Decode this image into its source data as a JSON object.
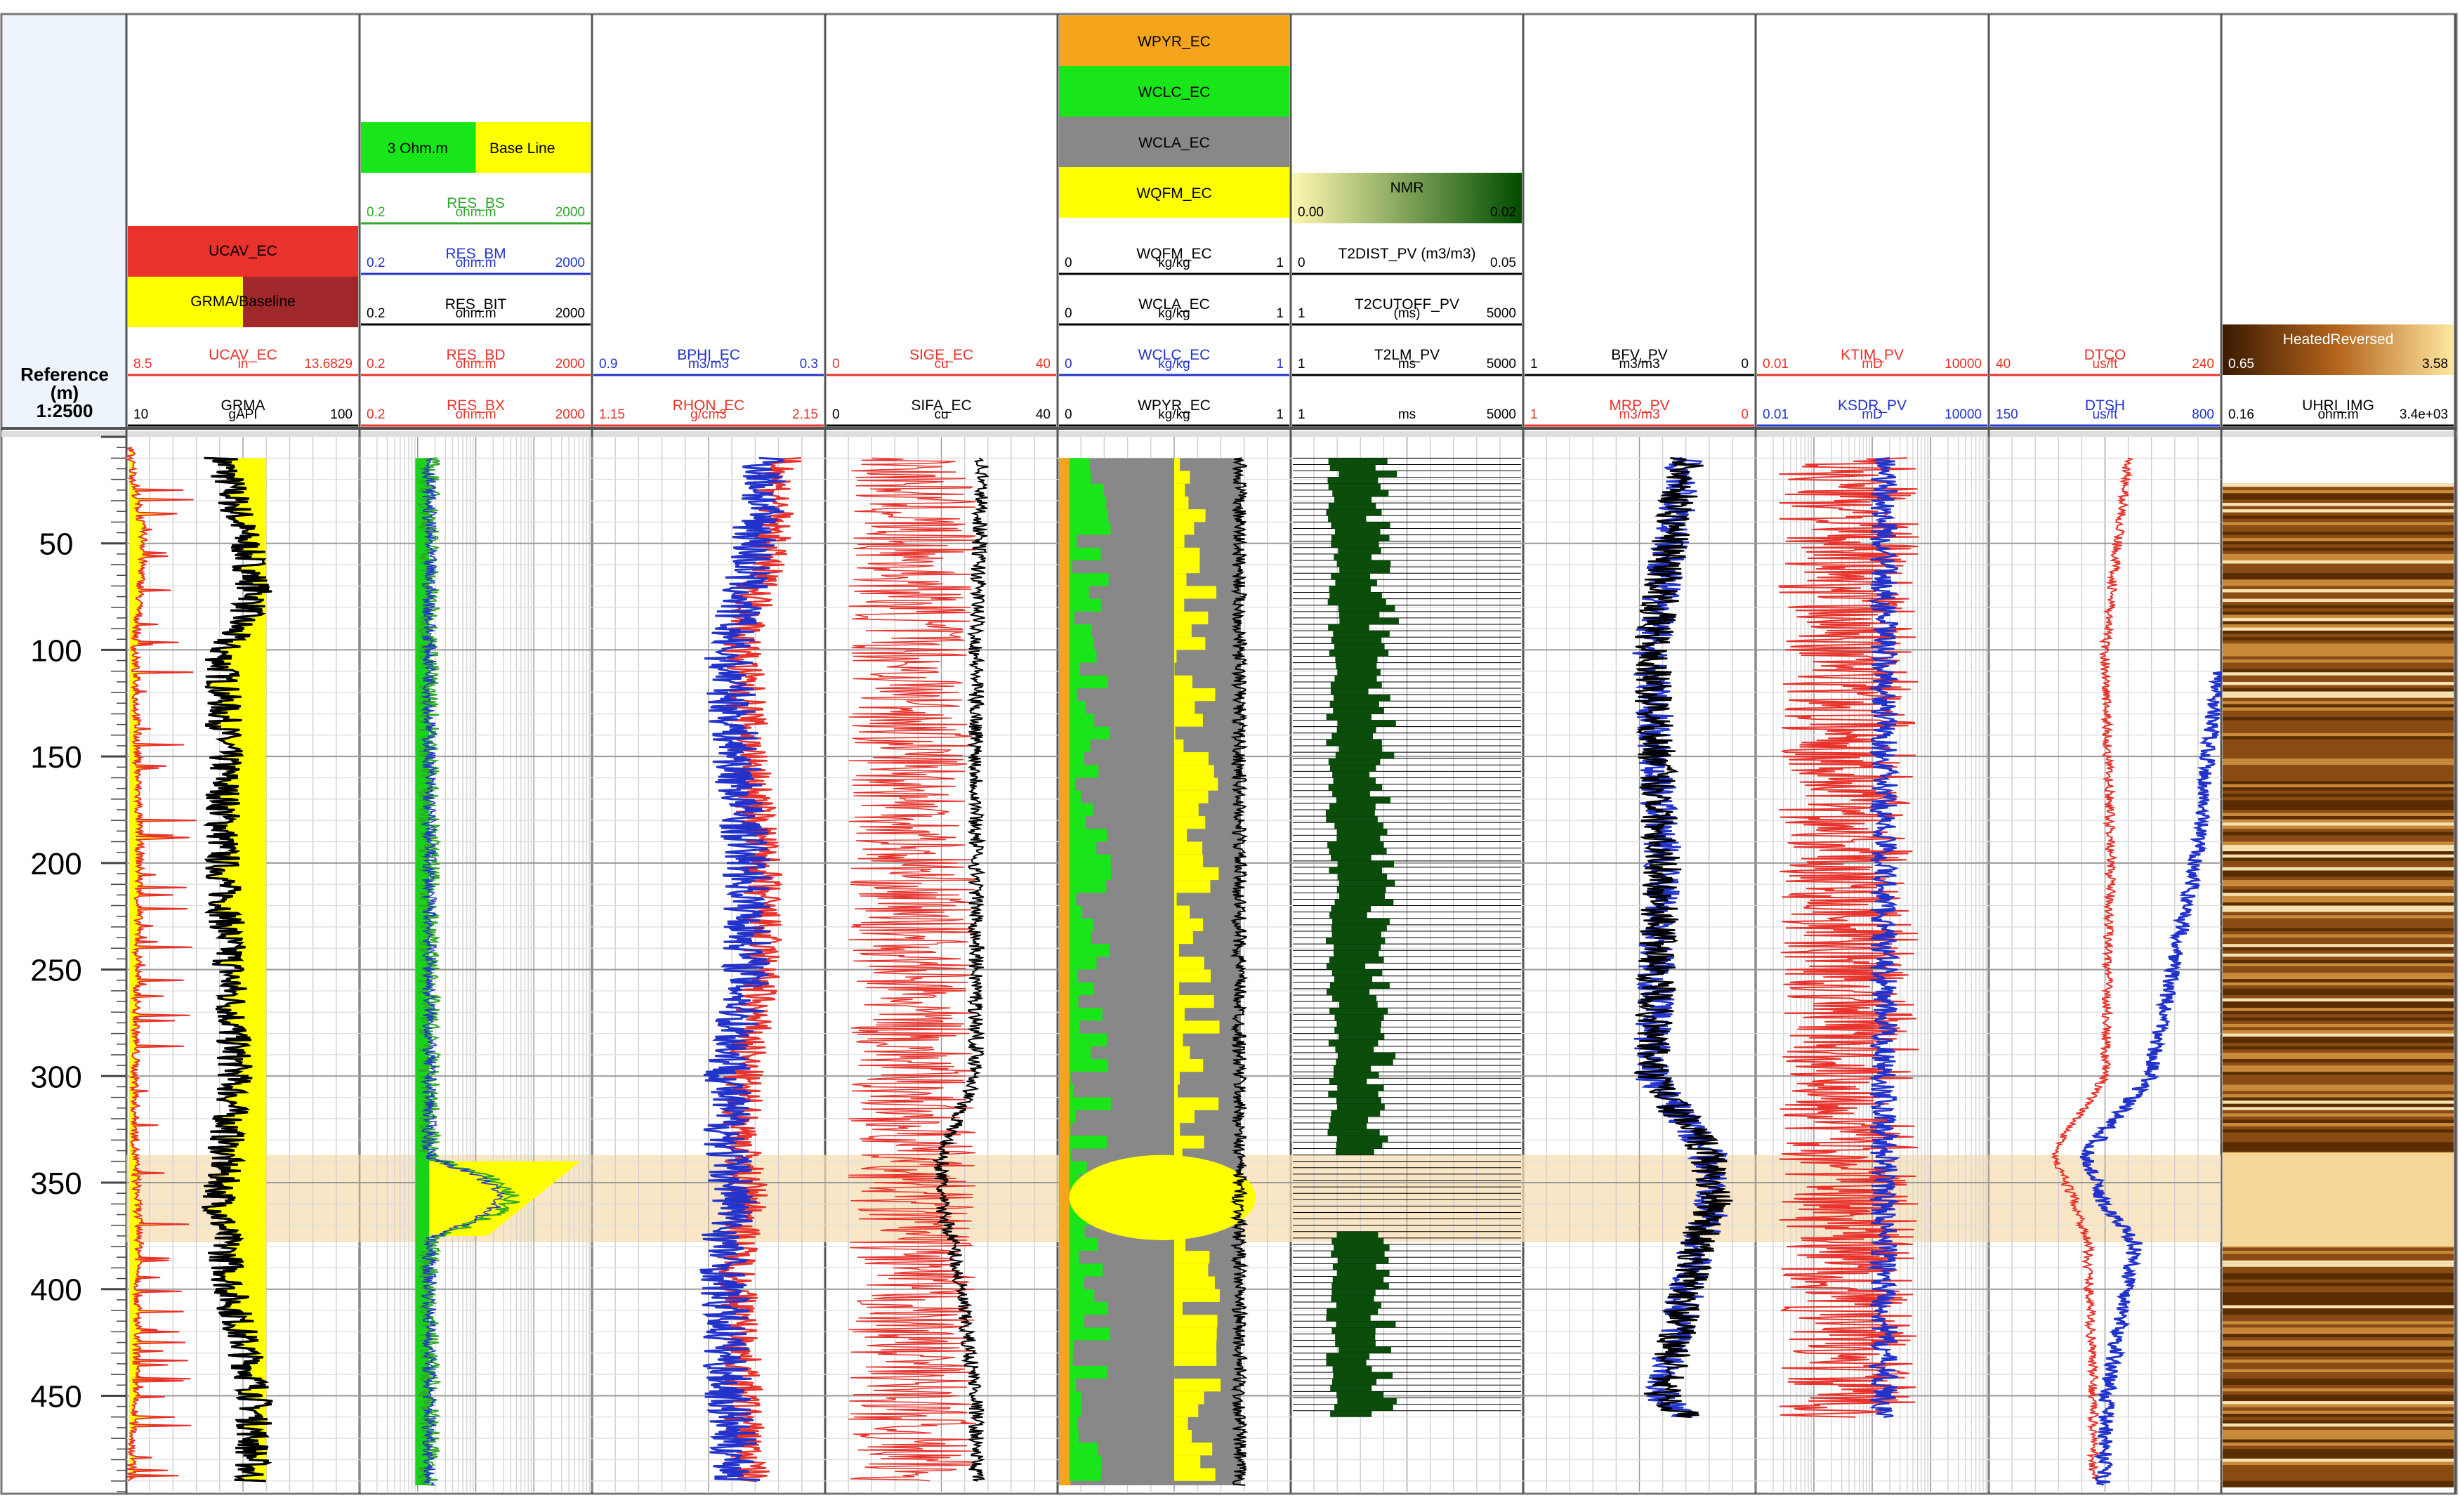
{
  "reference": {
    "title": "Reference",
    "unit": "(m)",
    "scale": "1:2500",
    "depth_ticks": [
      "50",
      "100",
      "150",
      "200",
      "250",
      "300",
      "350",
      "400",
      "450"
    ]
  },
  "track1": {
    "legend": {
      "top": "UCAV_EC",
      "bottom": "GRMA/Baseline"
    },
    "curves": [
      {
        "name": "UCAV_EC",
        "min": "8.5",
        "unit": "in",
        "max": "13.6829",
        "color": "#e8322b"
      },
      {
        "name": "GRMA",
        "min": "10",
        "unit": "gAPI",
        "max": "100",
        "color": "#000000"
      }
    ]
  },
  "track2": {
    "legend": {
      "left": "3 Ohm.m",
      "right": "Base Line"
    },
    "curves": [
      {
        "name": "RES_BS",
        "min": "0.2",
        "unit": "ohm.m",
        "max": "2000",
        "color": "#2fa82a"
      },
      {
        "name": "RES_BM",
        "min": "0.2",
        "unit": "ohm.m",
        "max": "2000",
        "color": "#2233cc"
      },
      {
        "name": "RES_BIT",
        "min": "0.2",
        "unit": "ohm.m",
        "max": "2000",
        "color": "#000000"
      },
      {
        "name": "RES_BD",
        "min": "0.2",
        "unit": "ohm.m",
        "max": "2000",
        "color": "#e8322b"
      },
      {
        "name": "RES_BX",
        "min": "0.2",
        "unit": "ohm.m",
        "max": "2000",
        "color": "#e8322b"
      }
    ]
  },
  "track3": {
    "curves": [
      {
        "name": "BPHI_EC",
        "min": "0.9",
        "unit": "m3/m3",
        "max": "0.3",
        "color": "#2233cc"
      },
      {
        "name": "RHON_EC",
        "min": "1.15",
        "unit": "g/cm3",
        "max": "2.15",
        "color": "#e8322b"
      }
    ]
  },
  "track4": {
    "curves": [
      {
        "name": "SIGE_EC",
        "min": "0",
        "unit": "cu",
        "max": "40",
        "color": "#e8322b"
      },
      {
        "name": "SIFA_EC",
        "min": "0",
        "unit": "cu",
        "max": "40",
        "color": "#000000"
      }
    ]
  },
  "track5": {
    "legend": [
      {
        "label": "WPYR_EC",
        "color": "#f5a51b"
      },
      {
        "label": "WCLC_EC",
        "color": "#19e619"
      },
      {
        "label": "WCLA_EC",
        "color": "#888888"
      },
      {
        "label": "WQFM_EC",
        "color": "#ffff00"
      }
    ],
    "curves": [
      {
        "name": "WQFM_EC",
        "min": "0",
        "unit": "kg/kg",
        "max": "1",
        "color": "#000000"
      },
      {
        "name": "WCLA_EC",
        "min": "0",
        "unit": "kg/kg",
        "max": "1",
        "color": "#000000"
      },
      {
        "name": "WCLC_EC",
        "min": "0",
        "unit": "kg/kg",
        "max": "1",
        "color": "#2233cc"
      },
      {
        "name": "WPYR_EC",
        "min": "0",
        "unit": "kg/kg",
        "max": "1",
        "color": "#000000"
      }
    ]
  },
  "track6": {
    "legend": {
      "label": "NMR",
      "min": "0.00",
      "max": "0.02"
    },
    "curves": [
      {
        "name": "T2DIST_PV (m3/m3)",
        "min": "0",
        "unit": "",
        "max": "0.05",
        "color": "#000000"
      },
      {
        "name": "T2CUTOFF_PV",
        "min": "1",
        "unit": "(ms)",
        "max": "5000",
        "color": "#000000"
      },
      {
        "name": "T2LM_PV",
        "min": "1",
        "unit": "ms",
        "max": "5000",
        "color": "#000000"
      },
      {
        "name": "",
        "min": "1",
        "unit": "ms",
        "max": "5000",
        "color": "#000000"
      }
    ]
  },
  "track7": {
    "curves": [
      {
        "name": "BFV_PV",
        "min": "1",
        "unit": "m3/m3",
        "max": "0",
        "color": "#000000"
      },
      {
        "name": "MRP_PV",
        "min": "1",
        "unit": "m3/m3",
        "max": "0",
        "color": "#e8322b"
      }
    ]
  },
  "track8": {
    "curves": [
      {
        "name": "KTIM_PV",
        "min": "0.01",
        "unit": "mD",
        "max": "10000",
        "color": "#e8322b"
      },
      {
        "name": "KSDR_PV",
        "min": "0.01",
        "unit": "mD",
        "max": "10000",
        "color": "#2233cc"
      }
    ]
  },
  "track9": {
    "curves": [
      {
        "name": "DTCO",
        "min": "40",
        "unit": "us/ft",
        "max": "240",
        "color": "#e8322b"
      },
      {
        "name": "DTSH",
        "min": "150",
        "unit": "us/ft",
        "max": "800",
        "color": "#2233cc"
      }
    ]
  },
  "track10": {
    "legend": {
      "label": "HeatedReversed",
      "min": "0.65",
      "max": "3.58"
    },
    "curves": [
      {
        "name": "UHRI_IMG",
        "min": "0.16",
        "unit": "ohm.m",
        "max": "3.4e+03",
        "color": "#000000"
      }
    ]
  },
  "chart_data": {
    "type": "line",
    "depth_range": [
      0,
      495
    ],
    "depth_ticks": [
      50,
      100,
      150,
      200,
      250,
      300,
      350,
      400,
      450
    ],
    "highlight_interval": {
      "top": 337,
      "base": 378,
      "color": "#f5deb3"
    },
    "grid": true,
    "colors": {
      "gr_fill": "#ffff00",
      "caliper_fill": "#e8322b",
      "image_dark": "#5a2d00",
      "image_light": "#f5d79a",
      "nmr_fill": "#0b4d0b"
    },
    "series": [
      {
        "name": "GRMA",
        "track": 1,
        "depth": [
          10,
          50,
          75,
          100,
          150,
          200,
          250,
          300,
          337,
          360,
          378,
          400,
          450,
          490
        ],
        "values": [
          47,
          56,
          60,
          47,
          48,
          47,
          50,
          52,
          48,
          46,
          48,
          50,
          60,
          58
        ]
      },
      {
        "name": "UCAV_EC",
        "track": 1,
        "depth": [
          10,
          50,
          100,
          200,
          300,
          337,
          378,
          450,
          490
        ],
        "values": [
          8.5,
          8.8,
          8.6,
          8.7,
          8.6,
          8.6,
          8.7,
          8.6,
          8.5
        ]
      },
      {
        "name": "BPHI_EC",
        "track": 3,
        "depth": [
          10,
          50,
          100,
          150,
          200,
          250,
          300,
          337,
          360,
          378,
          400,
          450,
          490
        ],
        "values": [
          0.45,
          0.48,
          0.55,
          0.53,
          0.5,
          0.5,
          0.55,
          0.55,
          0.53,
          0.56,
          0.56,
          0.55,
          0.53
        ]
      },
      {
        "name": "SIFA_EC",
        "track": 4,
        "depth": [
          10,
          100,
          200,
          300,
          337,
          360,
          378,
          450,
          490
        ],
        "values": [
          27,
          26,
          26,
          26,
          20,
          20,
          22,
          26,
          26
        ]
      },
      {
        "name": "BFV_PV",
        "track": 7,
        "depth": [
          10,
          100,
          200,
          300,
          337,
          360,
          378,
          450,
          460
        ],
        "values": [
          0.3,
          0.45,
          0.4,
          0.45,
          0.2,
          0.18,
          0.25,
          0.4,
          0.3
        ]
      },
      {
        "name": "DTCO",
        "track": 9,
        "depth": [
          10,
          100,
          200,
          300,
          337,
          360,
          378,
          450,
          490
        ],
        "values": [
          160,
          140,
          145,
          140,
          95,
          115,
          125,
          130,
          130
        ]
      },
      {
        "name": "DTSH",
        "track": 9,
        "depth": [
          110,
          200,
          300,
          337,
          360,
          378,
          450,
          490
        ],
        "values": [
          790,
          730,
          600,
          420,
          470,
          560,
          480,
          470
        ]
      }
    ]
  }
}
